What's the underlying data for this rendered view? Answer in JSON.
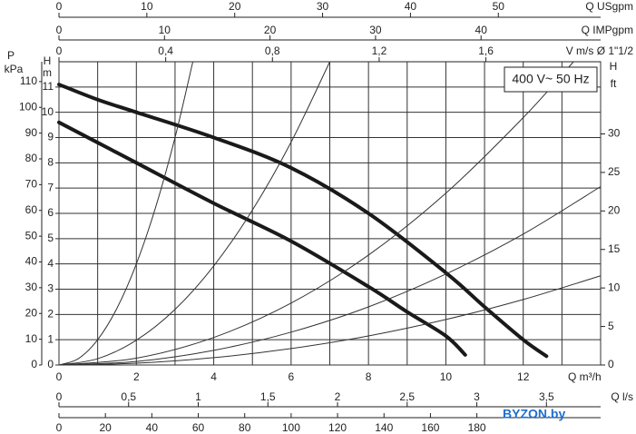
{
  "chart_data": {
    "type": "line",
    "xlabel": "Q m³/h",
    "xlim": [
      0,
      14
    ],
    "xticks": [
      0,
      2,
      4,
      6,
      8,
      10,
      12
    ],
    "xminorticks": [
      1,
      3,
      5,
      7,
      9,
      11,
      13,
      14
    ],
    "ylabel": "H",
    "yunit": "m",
    "ylim": [
      0,
      12
    ],
    "yticks": [
      0,
      1,
      2,
      3,
      4,
      5,
      6,
      7,
      8,
      9,
      10,
      11
    ],
    "y2label": "H",
    "y2unit": "ft",
    "y2lim": [
      0,
      39.37
    ],
    "y2ticks": [
      0,
      5,
      10,
      15,
      20,
      25,
      30
    ],
    "y3label": "P",
    "y3unit": "kPa",
    "y3lim": [
      0,
      117.7
    ],
    "y3ticks": [
      0,
      10,
      20,
      30,
      40,
      50,
      60,
      70,
      80,
      90,
      100,
      110
    ],
    "top_axes": [
      {
        "label": "Q USgpm",
        "lim": [
          0,
          61.64
        ],
        "ticks": [
          0,
          10,
          20,
          30,
          40,
          50
        ]
      },
      {
        "label": "Q IMPgpm",
        "lim": [
          0,
          51.33
        ],
        "ticks": [
          0,
          10,
          20,
          30,
          40
        ]
      },
      {
        "label": "V m/s Ø 1\"1/2",
        "lim": [
          0,
          2.03
        ],
        "ticks": [
          0,
          {
            "value": 0.4,
            "label": "0,4"
          },
          {
            "value": 0.8,
            "label": "0,8"
          },
          {
            "value": 1.2,
            "label": "1,2"
          },
          {
            "value": 1.6,
            "label": "1,6"
          }
        ]
      }
    ],
    "bottom_axes": [
      {
        "label": "Q l/s",
        "lim": [
          0,
          3.889
        ],
        "ticks": [
          0,
          {
            "value": 0.5,
            "label": "0,5"
          },
          1,
          {
            "value": 1.5,
            "label": "1,5"
          },
          2,
          {
            "value": 2.5,
            "label": "2,5"
          },
          3,
          {
            "value": 3.5,
            "label": "3,5"
          }
        ]
      },
      {
        "lim": [
          0,
          233.3
        ],
        "ticks": [
          0,
          20,
          40,
          60,
          80,
          100,
          120,
          140,
          160,
          180
        ]
      }
    ],
    "series": [
      {
        "color": "#1a1a1a",
        "width": 4,
        "x": [
          0,
          1,
          2,
          4,
          6,
          8,
          10,
          11,
          12,
          12.6
        ],
        "values": [
          11.1,
          10.5,
          10.0,
          9.0,
          7.8,
          6.0,
          3.65,
          2.3,
          1.0,
          0.35
        ]
      },
      {
        "color": "#1a1a1a",
        "width": 4,
        "x": [
          0,
          1,
          2,
          4,
          6,
          8,
          9,
          10,
          10.5
        ],
        "values": [
          9.6,
          8.8,
          8.0,
          6.4,
          4.9,
          3.1,
          2.1,
          1.15,
          0.4
        ]
      },
      {
        "color": "#333333",
        "width": 1,
        "x": [
          0,
          0.5,
          1,
          1.5,
          2,
          2.5,
          3,
          3.46
        ],
        "values": [
          0,
          0.25,
          1,
          2.25,
          4,
          6.25,
          9,
          12
        ]
      },
      {
        "color": "#333333",
        "width": 1,
        "x": [
          0,
          1,
          2,
          3,
          4,
          5,
          6,
          7
        ],
        "values": [
          0,
          0.25,
          0.98,
          2.2,
          3.92,
          6.13,
          8.82,
          12
        ]
      },
      {
        "color": "#333333",
        "width": 1,
        "x": [
          0,
          2,
          4,
          6,
          8,
          10,
          12,
          13.3
        ],
        "values": [
          0,
          0.27,
          1.09,
          2.45,
          4.35,
          6.8,
          9.79,
          12
        ]
      },
      {
        "color": "#333333",
        "width": 1,
        "x": [
          0,
          2,
          4,
          6,
          8,
          10,
          12,
          14
        ],
        "values": [
          0,
          0.14,
          0.58,
          1.3,
          2.3,
          3.6,
          5.18,
          7.06
        ]
      },
      {
        "color": "#333333",
        "width": 1,
        "x": [
          0,
          2,
          4,
          6,
          8,
          10,
          12,
          14
        ],
        "values": [
          0,
          0.07,
          0.29,
          0.65,
          1.15,
          1.8,
          2.59,
          3.53
        ]
      }
    ],
    "annotation": "400 V~ 50 Hz",
    "watermark": "BYZON.by"
  }
}
